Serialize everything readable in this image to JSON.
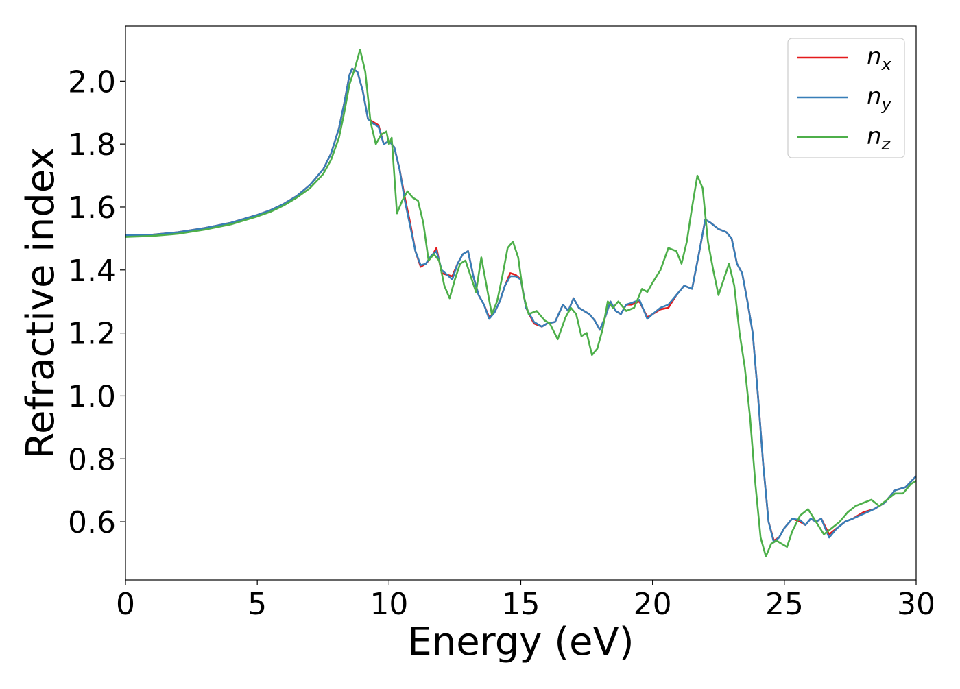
{
  "chart_data": {
    "type": "line",
    "title": "",
    "xlabel": "Energy (eV)",
    "ylabel": "Refractive index",
    "xlim": [
      0,
      30
    ],
    "ylim": [
      0.415,
      2.175
    ],
    "xticks": [
      "0",
      "5",
      "10",
      "15",
      "20",
      "25",
      "30"
    ],
    "yticks": [
      "0.6",
      "0.8",
      "1.0",
      "1.2",
      "1.4",
      "1.6",
      "1.8",
      "2.0"
    ],
    "grid": false,
    "legend_position": "top-right",
    "series": [
      {
        "name": "n_x",
        "label_base": "n",
        "label_sub": "x",
        "color": "#e41a1c",
        "x": [
          0,
          1,
          2,
          3,
          4,
          5,
          5.5,
          6,
          6.5,
          7,
          7.5,
          7.8,
          8.1,
          8.3,
          8.5,
          8.6,
          8.8,
          9.0,
          9.2,
          9.4,
          9.6,
          9.8,
          10.0,
          10.2,
          10.4,
          10.6,
          10.8,
          11.0,
          11.2,
          11.4,
          11.6,
          11.8,
          12.0,
          12.2,
          12.4,
          12.6,
          12.8,
          13.0,
          13.2,
          13.4,
          13.6,
          13.8,
          14.0,
          14.2,
          14.4,
          14.6,
          14.8,
          15.0,
          15.2,
          15.5,
          15.8,
          16.0,
          16.3,
          16.6,
          16.8,
          17.0,
          17.2,
          17.4,
          17.6,
          17.8,
          18.0,
          18.2,
          18.4,
          18.6,
          18.8,
          19.0,
          19.2,
          19.5,
          19.8,
          20.0,
          20.3,
          20.6,
          20.9,
          21.2,
          21.5,
          21.8,
          22.0,
          22.2,
          22.5,
          22.8,
          23.0,
          23.2,
          23.4,
          23.6,
          23.8,
          24.0,
          24.2,
          24.4,
          24.6,
          24.8,
          25.0,
          25.3,
          25.6,
          25.8,
          26.0,
          26.2,
          26.4,
          26.7,
          27.0,
          27.3,
          27.6,
          28.0,
          28.4,
          28.8,
          29.2,
          29.6,
          30.0
        ],
        "y": [
          1.51,
          1.512,
          1.52,
          1.533,
          1.55,
          1.575,
          1.59,
          1.61,
          1.635,
          1.67,
          1.72,
          1.77,
          1.85,
          1.93,
          2.02,
          2.04,
          2.03,
          1.97,
          1.88,
          1.87,
          1.86,
          1.8,
          1.81,
          1.79,
          1.72,
          1.63,
          1.55,
          1.46,
          1.41,
          1.42,
          1.44,
          1.47,
          1.39,
          1.385,
          1.38,
          1.42,
          1.45,
          1.46,
          1.38,
          1.32,
          1.29,
          1.25,
          1.265,
          1.3,
          1.35,
          1.39,
          1.385,
          1.37,
          1.28,
          1.23,
          1.22,
          1.23,
          1.235,
          1.29,
          1.27,
          1.31,
          1.28,
          1.27,
          1.26,
          1.24,
          1.21,
          1.25,
          1.3,
          1.27,
          1.26,
          1.29,
          1.29,
          1.3,
          1.25,
          1.26,
          1.275,
          1.28,
          1.32,
          1.35,
          1.34,
          1.47,
          1.56,
          1.55,
          1.53,
          1.52,
          1.5,
          1.42,
          1.39,
          1.3,
          1.2,
          1.0,
          0.78,
          0.6,
          0.54,
          0.55,
          0.58,
          0.61,
          0.6,
          0.59,
          0.61,
          0.6,
          0.61,
          0.56,
          0.58,
          0.6,
          0.61,
          0.63,
          0.64,
          0.66,
          0.7,
          0.71,
          0.745
        ]
      },
      {
        "name": "n_y",
        "label_base": "n",
        "label_sub": "y",
        "color": "#377eb8",
        "x": [
          0,
          1,
          2,
          3,
          4,
          5,
          5.5,
          6,
          6.5,
          7,
          7.5,
          7.8,
          8.1,
          8.3,
          8.5,
          8.6,
          8.8,
          9.0,
          9.2,
          9.4,
          9.6,
          9.8,
          10.0,
          10.2,
          10.4,
          10.6,
          10.8,
          11.0,
          11.2,
          11.4,
          11.6,
          11.8,
          12.0,
          12.2,
          12.4,
          12.6,
          12.8,
          13.0,
          13.2,
          13.4,
          13.6,
          13.8,
          14.0,
          14.2,
          14.4,
          14.6,
          14.8,
          15.0,
          15.2,
          15.5,
          15.8,
          16.0,
          16.3,
          16.6,
          16.8,
          17.0,
          17.2,
          17.4,
          17.6,
          17.8,
          18.0,
          18.2,
          18.4,
          18.6,
          18.8,
          19.0,
          19.2,
          19.5,
          19.8,
          20.0,
          20.3,
          20.6,
          20.9,
          21.2,
          21.5,
          21.8,
          22.0,
          22.2,
          22.5,
          22.8,
          23.0,
          23.2,
          23.4,
          23.6,
          23.8,
          24.0,
          24.2,
          24.4,
          24.6,
          24.8,
          25.0,
          25.3,
          25.6,
          25.8,
          26.0,
          26.2,
          26.4,
          26.7,
          27.0,
          27.3,
          27.6,
          28.0,
          28.4,
          28.8,
          29.2,
          29.6,
          30.0
        ],
        "y": [
          1.51,
          1.512,
          1.52,
          1.533,
          1.55,
          1.575,
          1.59,
          1.61,
          1.635,
          1.67,
          1.72,
          1.77,
          1.85,
          1.93,
          2.02,
          2.04,
          2.03,
          1.97,
          1.88,
          1.865,
          1.855,
          1.8,
          1.81,
          1.79,
          1.72,
          1.62,
          1.54,
          1.46,
          1.415,
          1.42,
          1.445,
          1.46,
          1.4,
          1.385,
          1.37,
          1.42,
          1.45,
          1.46,
          1.38,
          1.32,
          1.29,
          1.245,
          1.265,
          1.3,
          1.35,
          1.38,
          1.38,
          1.37,
          1.28,
          1.235,
          1.22,
          1.23,
          1.235,
          1.29,
          1.27,
          1.31,
          1.28,
          1.27,
          1.26,
          1.24,
          1.21,
          1.25,
          1.3,
          1.27,
          1.26,
          1.29,
          1.295,
          1.305,
          1.245,
          1.26,
          1.28,
          1.29,
          1.32,
          1.35,
          1.34,
          1.47,
          1.56,
          1.55,
          1.53,
          1.52,
          1.5,
          1.42,
          1.39,
          1.3,
          1.2,
          1.0,
          0.78,
          0.6,
          0.535,
          0.55,
          0.58,
          0.61,
          0.605,
          0.59,
          0.61,
          0.6,
          0.61,
          0.55,
          0.58,
          0.6,
          0.61,
          0.625,
          0.64,
          0.66,
          0.7,
          0.71,
          0.745
        ]
      },
      {
        "name": "n_z",
        "label_base": "n",
        "label_sub": "z",
        "color": "#4daf4a",
        "x": [
          0,
          1,
          2,
          3,
          4,
          5,
          5.5,
          6,
          6.5,
          7,
          7.5,
          7.8,
          8.1,
          8.3,
          8.5,
          8.7,
          8.9,
          9.1,
          9.3,
          9.5,
          9.7,
          9.9,
          10.0,
          10.1,
          10.3,
          10.5,
          10.7,
          10.9,
          11.1,
          11.3,
          11.5,
          11.7,
          11.9,
          12.1,
          12.3,
          12.5,
          12.7,
          12.9,
          13.1,
          13.3,
          13.5,
          13.7,
          13.9,
          14.1,
          14.3,
          14.5,
          14.7,
          14.9,
          15.1,
          15.3,
          15.6,
          15.9,
          16.1,
          16.4,
          16.7,
          16.9,
          17.1,
          17.3,
          17.5,
          17.7,
          17.9,
          18.1,
          18.3,
          18.5,
          18.7,
          19.0,
          19.3,
          19.6,
          19.8,
          20.0,
          20.3,
          20.6,
          20.9,
          21.1,
          21.3,
          21.5,
          21.7,
          21.9,
          22.1,
          22.3,
          22.5,
          22.7,
          22.9,
          23.1,
          23.3,
          23.5,
          23.7,
          23.9,
          24.1,
          24.3,
          24.5,
          24.7,
          24.9,
          25.1,
          25.3,
          25.6,
          25.9,
          26.2,
          26.5,
          26.8,
          27.1,
          27.4,
          27.7,
          28.0,
          28.3,
          28.6,
          28.9,
          29.2,
          29.5,
          29.8,
          30.0
        ],
        "y": [
          1.505,
          1.508,
          1.515,
          1.528,
          1.545,
          1.57,
          1.585,
          1.605,
          1.63,
          1.66,
          1.705,
          1.75,
          1.82,
          1.9,
          1.99,
          2.04,
          2.1,
          2.03,
          1.87,
          1.8,
          1.83,
          1.84,
          1.8,
          1.82,
          1.58,
          1.62,
          1.65,
          1.63,
          1.62,
          1.55,
          1.43,
          1.45,
          1.43,
          1.35,
          1.31,
          1.37,
          1.42,
          1.43,
          1.38,
          1.33,
          1.44,
          1.35,
          1.26,
          1.3,
          1.38,
          1.47,
          1.49,
          1.44,
          1.32,
          1.26,
          1.27,
          1.24,
          1.23,
          1.18,
          1.25,
          1.28,
          1.26,
          1.19,
          1.2,
          1.13,
          1.15,
          1.21,
          1.3,
          1.28,
          1.3,
          1.27,
          1.28,
          1.34,
          1.33,
          1.36,
          1.4,
          1.47,
          1.46,
          1.42,
          1.49,
          1.6,
          1.7,
          1.66,
          1.49,
          1.4,
          1.32,
          1.37,
          1.42,
          1.35,
          1.2,
          1.09,
          0.93,
          0.72,
          0.55,
          0.49,
          0.53,
          0.54,
          0.53,
          0.52,
          0.57,
          0.62,
          0.64,
          0.6,
          0.56,
          0.58,
          0.6,
          0.63,
          0.65,
          0.66,
          0.67,
          0.65,
          0.67,
          0.69,
          0.69,
          0.72,
          0.73
        ]
      }
    ]
  }
}
